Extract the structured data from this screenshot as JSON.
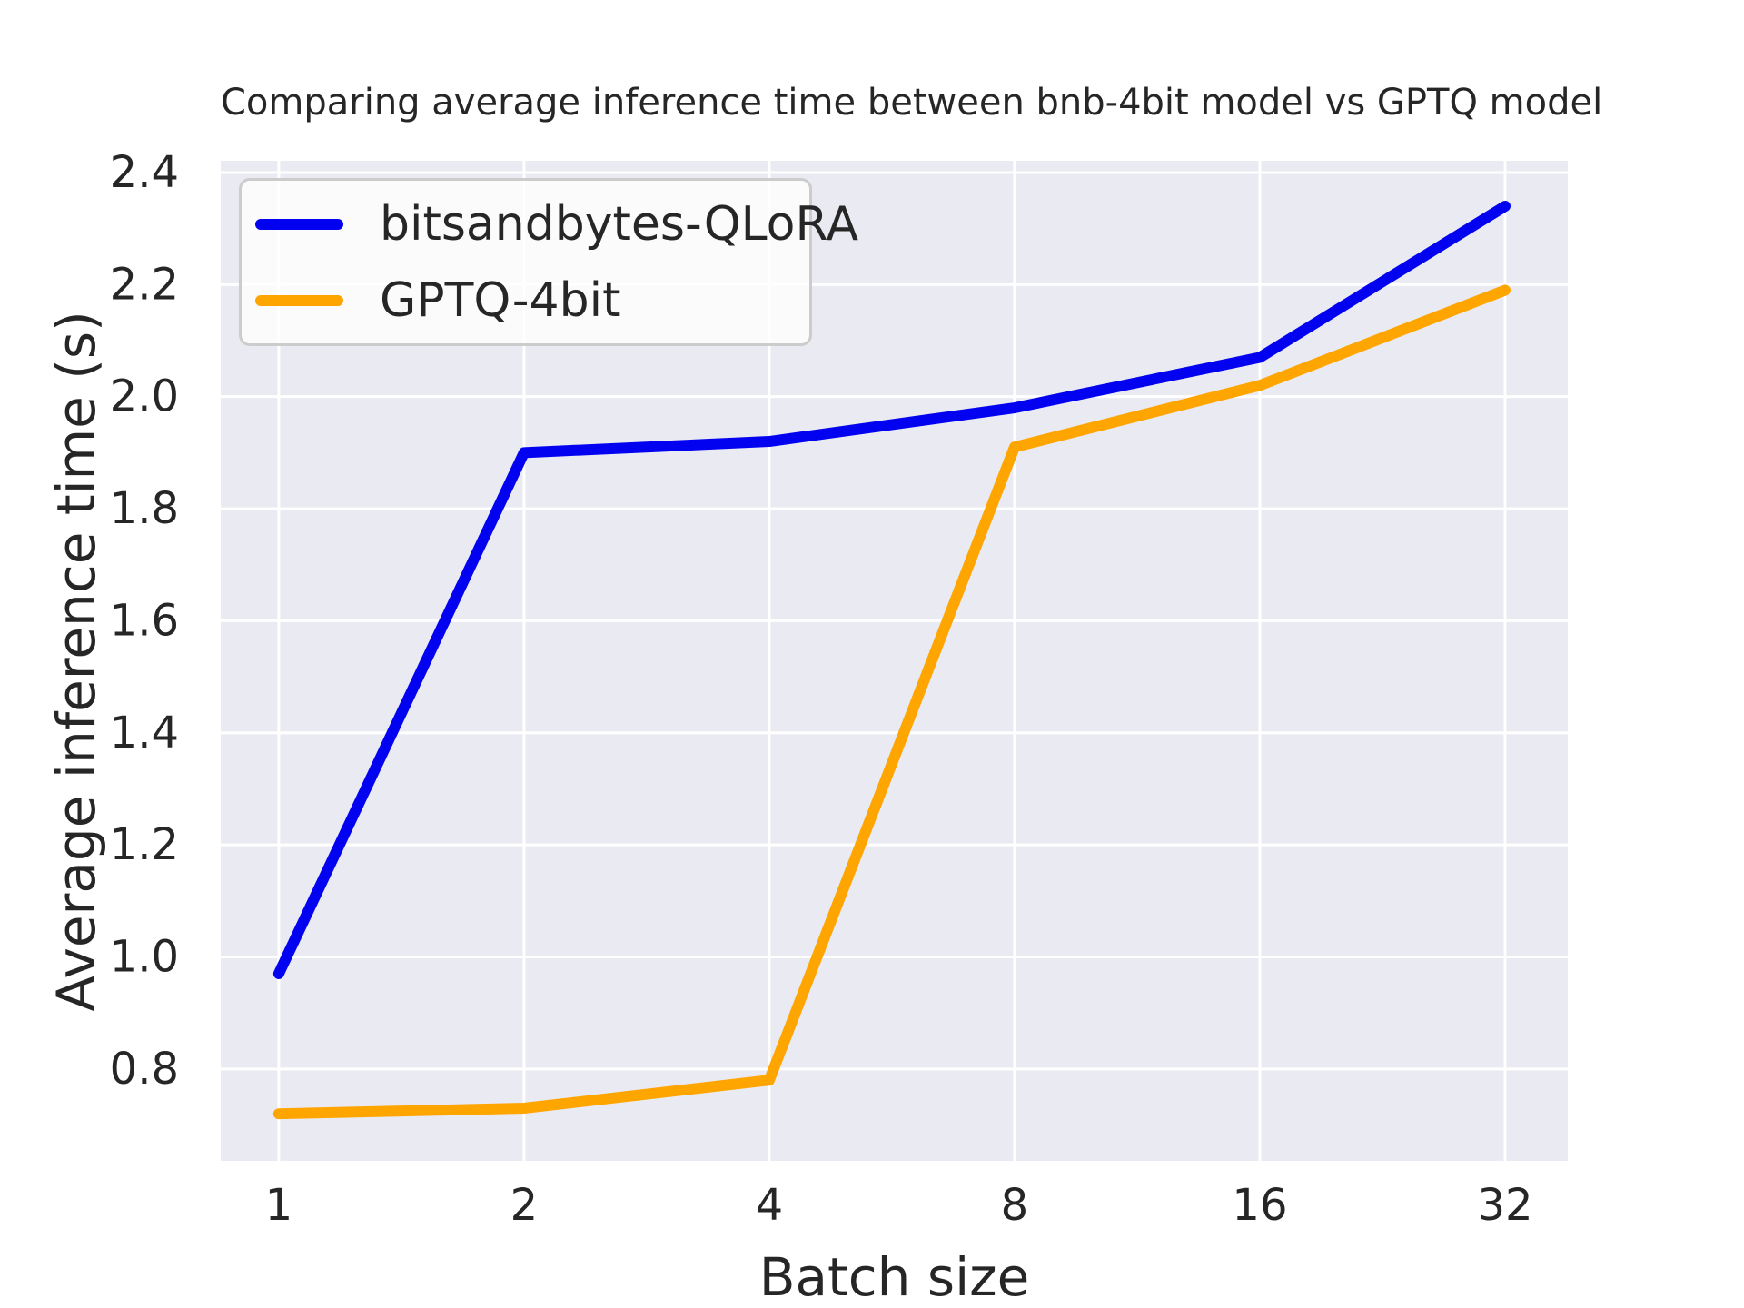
{
  "title": "Comparing average inference time between bnb-4bit model vs GPTQ model",
  "chart_data": {
    "type": "line",
    "title": "Comparing average inference time between bnb-4bit model vs GPTQ model",
    "xlabel": "Batch size",
    "ylabel": "Average inference time (s)",
    "x": [
      1,
      2,
      4,
      8,
      16,
      32
    ],
    "x_scale": "log2",
    "xtick_labels": [
      "1",
      "2",
      "4",
      "8",
      "16",
      "32"
    ],
    "yticks": [
      0.8,
      1.0,
      1.2,
      1.4,
      1.6,
      1.8,
      2.0,
      2.2,
      2.4
    ],
    "ytick_labels": [
      "0.8",
      "1.0",
      "1.2",
      "1.4",
      "1.6",
      "1.8",
      "2.0",
      "2.2",
      "2.4"
    ],
    "xlim_log2": [
      -0.2366,
      5.2556
    ],
    "ylim": [
      0.636,
      2.421
    ],
    "grid": true,
    "legend_position": "upper left",
    "series": [
      {
        "name": "bitsandbytes-QLoRA",
        "color": "#0202f0",
        "values": [
          0.97,
          1.9,
          1.92,
          1.98,
          2.07,
          2.34
        ]
      },
      {
        "name": "GPTQ-4bit",
        "color": "#ffa500",
        "values": [
          0.72,
          0.73,
          0.78,
          1.91,
          2.02,
          2.19
        ]
      }
    ],
    "colors": {
      "plot_background": "#eaeaf2",
      "grid_color": "#ffffff",
      "text_color": "#262626",
      "figure_background": "#ffffff",
      "legend_border": "#cccccc"
    }
  }
}
